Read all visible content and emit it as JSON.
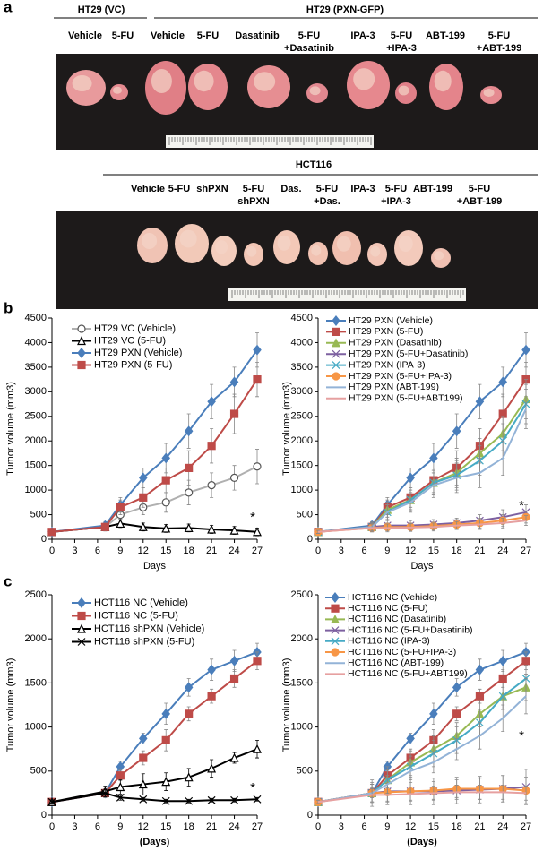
{
  "panel_labels": {
    "a": "a",
    "b": "b",
    "c": "c"
  },
  "panel_a": {
    "ht29_groups": [
      "HT29 (VC)",
      "HT29 (PXN-GFP)"
    ],
    "ht29_treatments": [
      [
        "Vehicle"
      ],
      [
        "5-FU"
      ],
      [
        "Vehicle"
      ],
      [
        "5-FU"
      ],
      [
        "Dasatinib"
      ],
      [
        "5-FU",
        "+Dasatinib"
      ],
      [
        "IPA-3"
      ],
      [
        "5-FU",
        "+IPA-3"
      ],
      [
        "ABT-199"
      ],
      [
        "5-FU",
        "+ABT-199"
      ]
    ],
    "hct116_group": "HCT116",
    "hct116_treatments": [
      [
        "Vehicle"
      ],
      [
        "5-FU"
      ],
      [
        "shPXN"
      ],
      [
        "5-FU",
        "shPXN"
      ],
      [
        "Das."
      ],
      [
        "5-FU",
        "+Das."
      ],
      [
        "IPA-3"
      ],
      [
        "5-FU",
        "+IPA-3"
      ],
      [
        "ABT-199"
      ],
      [
        "5-FU",
        "+ABT-199"
      ]
    ]
  },
  "chart_data": [
    {
      "type": "line",
      "x_label": "Days",
      "y_label": "Tumor volume (mm3)",
      "annotation": "*",
      "legend": "upper left",
      "x": [
        0,
        7,
        9,
        12,
        15,
        18,
        21,
        24,
        27
      ],
      "xlim": [
        0,
        27
      ],
      "xticks": [
        0,
        3,
        6,
        9,
        12,
        15,
        18,
        21,
        24,
        27
      ],
      "ylim": [
        0,
        4500
      ],
      "yticks": [
        0,
        500,
        1000,
        1500,
        2000,
        2500,
        3000,
        3500,
        4000,
        4500
      ],
      "series": [
        {
          "name": "HT29 VC (Vehicle)",
          "color": "#b0b0b0",
          "marker": "circle-open",
          "values": [
            150,
            250,
            500,
            650,
            750,
            950,
            1100,
            1250,
            1480
          ],
          "errors": [
            30,
            80,
            100,
            150,
            200,
            250,
            250,
            250,
            350
          ]
        },
        {
          "name": "HT29 VC (5-FU)",
          "color": "#000000",
          "marker": "triangle-open",
          "values": [
            150,
            250,
            320,
            250,
            220,
            230,
            200,
            180,
            150
          ],
          "errors": [
            30,
            60,
            80,
            80,
            80,
            80,
            80,
            80,
            80
          ]
        },
        {
          "name": "HT29 PXN (Vehicle)",
          "color": "#4a7ebb",
          "marker": "diamond",
          "values": [
            150,
            280,
            700,
            1250,
            1650,
            2200,
            2800,
            3200,
            3850
          ],
          "errors": [
            30,
            80,
            150,
            200,
            300,
            350,
            350,
            300,
            350
          ]
        },
        {
          "name": "HT29 PXN (5-FU)",
          "color": "#be4b48",
          "marker": "square",
          "values": [
            150,
            250,
            650,
            850,
            1200,
            1450,
            1900,
            2550,
            3250
          ],
          "errors": [
            30,
            80,
            150,
            200,
            250,
            350,
            350,
            400,
            350
          ]
        }
      ]
    },
    {
      "type": "line",
      "x_label": "Days",
      "y_label": "Tumor volume (mm3)",
      "annotation": "*",
      "legend": "upper left",
      "x": [
        0,
        7,
        9,
        12,
        15,
        18,
        21,
        24,
        27
      ],
      "xlim": [
        0,
        27
      ],
      "xticks": [
        0,
        3,
        6,
        9,
        12,
        15,
        18,
        21,
        24,
        27
      ],
      "ylim": [
        0,
        4500
      ],
      "yticks": [
        0,
        500,
        1000,
        1500,
        2000,
        2500,
        3000,
        3500,
        4000,
        4500
      ],
      "series": [
        {
          "name": "HT29 PXN (Vehicle)",
          "color": "#4a7ebb",
          "marker": "diamond",
          "values": [
            150,
            280,
            700,
            1250,
            1650,
            2200,
            2800,
            3200,
            3850
          ],
          "errors": [
            30,
            80,
            150,
            200,
            300,
            350,
            350,
            300,
            350
          ]
        },
        {
          "name": "HT29 PXN (5-FU)",
          "color": "#be4b48",
          "marker": "square",
          "values": [
            150,
            250,
            650,
            850,
            1200,
            1450,
            1900,
            2550,
            3250
          ],
          "errors": [
            30,
            80,
            150,
            200,
            250,
            350,
            350,
            400,
            350
          ]
        },
        {
          "name": "HT29 PXN (Dasatinib)",
          "color": "#98b954",
          "marker": "triangle",
          "values": [
            150,
            250,
            600,
            800,
            1150,
            1350,
            1750,
            2150,
            2850
          ],
          "errors": [
            30,
            80,
            150,
            200,
            250,
            300,
            300,
            350,
            400
          ]
        },
        {
          "name": "HT29 PXN (5-FU+Dasatinib)",
          "color": "#7d60a0",
          "marker": "x",
          "values": [
            150,
            250,
            280,
            280,
            300,
            330,
            380,
            450,
            550
          ],
          "errors": [
            30,
            100,
            100,
            100,
            100,
            100,
            120,
            150,
            150
          ]
        },
        {
          "name": "HT29 PXN (IPA-3)",
          "color": "#46aac5",
          "marker": "x",
          "values": [
            150,
            250,
            550,
            800,
            1150,
            1300,
            1600,
            2000,
            2750
          ],
          "errors": [
            30,
            80,
            150,
            200,
            250,
            300,
            300,
            350,
            400
          ]
        },
        {
          "name": "HT29 PXN (5-FU+IPA-3)",
          "color": "#f79646",
          "marker": "circle",
          "values": [
            150,
            230,
            250,
            250,
            270,
            300,
            330,
            380,
            450
          ],
          "errors": [
            30,
            80,
            80,
            80,
            80,
            100,
            100,
            120,
            120
          ]
        },
        {
          "name": "HT29 PXN (ABT-199)",
          "color": "#93b3d7",
          "marker": "none",
          "values": [
            150,
            250,
            550,
            750,
            1100,
            1250,
            1350,
            1650,
            2650
          ],
          "errors": [
            30,
            80,
            150,
            200,
            250,
            300,
            300,
            350,
            400
          ]
        },
        {
          "name": "HT29 PXN (5-FU+ABT199)",
          "color": "#e6a0a0",
          "marker": "none",
          "values": [
            150,
            230,
            230,
            240,
            250,
            280,
            300,
            330,
            380
          ],
          "errors": [
            30,
            80,
            80,
            80,
            80,
            80,
            100,
            100,
            100
          ]
        }
      ]
    },
    {
      "type": "line",
      "x_label": "(Days)",
      "y_label": "Tumor volume (mm3)",
      "annotation": "*",
      "legend": "upper left",
      "x": [
        0,
        7,
        9,
        12,
        15,
        18,
        21,
        24,
        27
      ],
      "xlim": [
        0,
        27
      ],
      "xticks": [
        0,
        3,
        6,
        9,
        12,
        15,
        18,
        21,
        24,
        27
      ],
      "ylim": [
        0,
        2500
      ],
      "yticks": [
        0,
        500,
        1000,
        1500,
        2000,
        2500
      ],
      "series": [
        {
          "name": "HCT116 NC (Vehicle)",
          "color": "#4a7ebb",
          "marker": "diamond",
          "values": [
            150,
            250,
            550,
            870,
            1150,
            1450,
            1650,
            1750,
            1850
          ],
          "errors": [
            20,
            50,
            60,
            60,
            120,
            100,
            120,
            120,
            100
          ]
        },
        {
          "name": "HCT116 NC (5-FU)",
          "color": "#be4b48",
          "marker": "square",
          "values": [
            150,
            250,
            450,
            650,
            850,
            1150,
            1350,
            1550,
            1750
          ],
          "errors": [
            20,
            50,
            60,
            80,
            120,
            80,
            80,
            100,
            100
          ]
        },
        {
          "name": "HCT116 shPXN (Vehicle)",
          "color": "#000000",
          "marker": "triangle-open",
          "values": [
            150,
            270,
            320,
            350,
            380,
            430,
            530,
            650,
            750
          ],
          "errors": [
            20,
            60,
            80,
            120,
            100,
            100,
            100,
            60,
            100
          ]
        },
        {
          "name": "HCT116 shPXN (5-FU)",
          "color": "#000000",
          "marker": "x",
          "values": [
            150,
            250,
            200,
            180,
            160,
            160,
            170,
            170,
            180
          ],
          "errors": [
            20,
            40,
            30,
            20,
            20,
            20,
            20,
            20,
            20
          ]
        }
      ]
    },
    {
      "type": "line",
      "x_label": "(Days)",
      "y_label": "Tumor volume (mm3)",
      "annotation": "*",
      "legend": "upper left",
      "x": [
        0,
        7,
        9,
        12,
        15,
        18,
        21,
        24,
        27
      ],
      "xlim": [
        0,
        27
      ],
      "xticks": [
        0,
        3,
        6,
        9,
        12,
        15,
        18,
        21,
        24,
        27
      ],
      "ylim": [
        0,
        2500
      ],
      "yticks": [
        0,
        500,
        1000,
        1500,
        2000,
        2500
      ],
      "series": [
        {
          "name": "HCT116 NC (Vehicle)",
          "color": "#4a7ebb",
          "marker": "diamond",
          "values": [
            150,
            250,
            550,
            870,
            1150,
            1450,
            1650,
            1750,
            1850
          ],
          "errors": [
            20,
            50,
            60,
            60,
            120,
            100,
            120,
            120,
            100
          ]
        },
        {
          "name": "HCT116 NC (5-FU)",
          "color": "#be4b48",
          "marker": "square",
          "values": [
            150,
            250,
            450,
            650,
            850,
            1150,
            1350,
            1550,
            1750
          ],
          "errors": [
            20,
            50,
            60,
            80,
            120,
            80,
            80,
            100,
            100
          ]
        },
        {
          "name": "HCT116 NC (Dasatinib)",
          "color": "#98b954",
          "marker": "triangle",
          "values": [
            150,
            250,
            400,
            600,
            750,
            900,
            1150,
            1350,
            1450
          ],
          "errors": [
            20,
            120,
            150,
            150,
            150,
            150,
            150,
            150,
            150
          ]
        },
        {
          "name": "HCT116 NC (5-FU+Dasatinib)",
          "color": "#7d60a0",
          "marker": "x",
          "values": [
            150,
            250,
            270,
            270,
            270,
            280,
            290,
            300,
            320
          ],
          "errors": [
            20,
            150,
            150,
            150,
            150,
            150,
            150,
            150,
            200
          ]
        },
        {
          "name": "HCT116 NC (IPA-3)",
          "color": "#46aac5",
          "marker": "x",
          "values": [
            150,
            250,
            400,
            550,
            700,
            850,
            1050,
            1350,
            1550
          ],
          "errors": [
            20,
            100,
            120,
            120,
            150,
            150,
            150,
            150,
            150
          ]
        },
        {
          "name": "HCT116 NC (5-FU+IPA-3)",
          "color": "#f79646",
          "marker": "circle",
          "values": [
            150,
            250,
            260,
            270,
            280,
            300,
            300,
            300,
            280
          ],
          "errors": [
            20,
            100,
            100,
            100,
            100,
            100,
            120,
            150,
            150
          ]
        },
        {
          "name": "HCT116 NC (ABT-199)",
          "color": "#93b3d7",
          "marker": "none",
          "values": [
            150,
            250,
            350,
            500,
            600,
            750,
            900,
            1100,
            1350
          ],
          "errors": [
            20,
            100,
            100,
            100,
            120,
            120,
            150,
            150,
            200
          ]
        },
        {
          "name": "HCT116 NC (5-FU+ABT199)",
          "color": "#e6a0a0",
          "marker": "none",
          "values": [
            150,
            230,
            230,
            240,
            250,
            260,
            260,
            260,
            250
          ],
          "errors": [
            20,
            80,
            80,
            80,
            80,
            80,
            80,
            80,
            80
          ]
        }
      ]
    }
  ]
}
